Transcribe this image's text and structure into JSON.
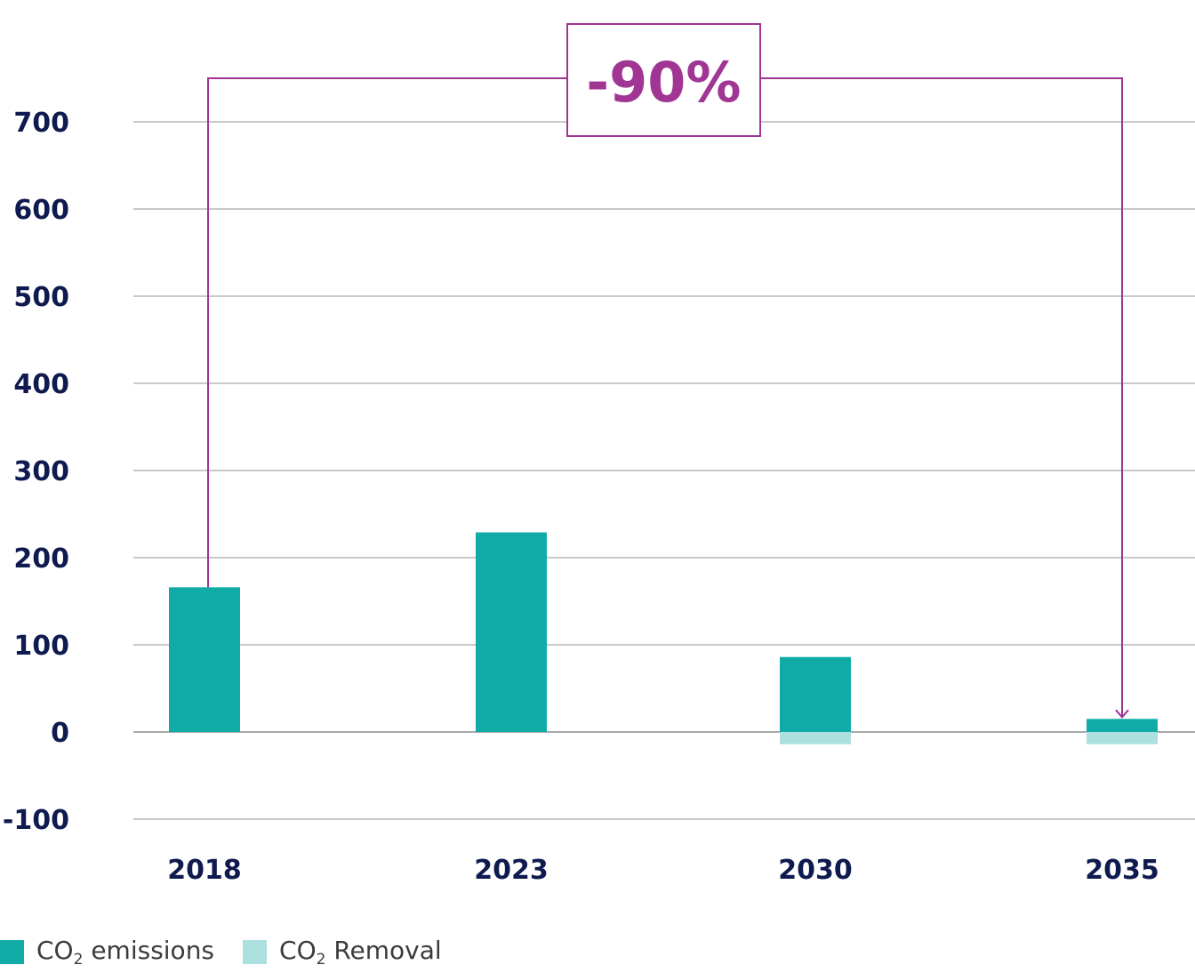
{
  "chart_data": {
    "type": "bar",
    "stacked": true,
    "categories": [
      "2018",
      "2023",
      "2030",
      "2035"
    ],
    "series": [
      {
        "name": "CO2 emissions",
        "values": [
          166,
          229,
          86,
          15
        ],
        "color": "#10aaa7"
      },
      {
        "name": "CO2 Removal",
        "values": [
          0,
          0,
          -14,
          -14
        ],
        "color": "#ace0df"
      }
    ],
    "yticks": [
      "700",
      "600",
      "500",
      "400",
      "300",
      "200",
      "100",
      "0",
      "-100"
    ],
    "ytick_values": [
      700,
      600,
      500,
      400,
      300,
      200,
      100,
      0,
      -100
    ],
    "ylim": [
      -100,
      700
    ],
    "grid": true,
    "legend_position": "bottom-left",
    "annotation": {
      "text": "-90%",
      "from_category": "2018",
      "to_category": "2035",
      "color": "#a03594"
    }
  },
  "legend": [
    {
      "prefix": "CO",
      "sub": "2",
      "suffix": " emissions",
      "color": "#10aaa7"
    },
    {
      "prefix": "CO",
      "sub": "2",
      "suffix": " Removal",
      "color": "#ace0df"
    }
  ]
}
